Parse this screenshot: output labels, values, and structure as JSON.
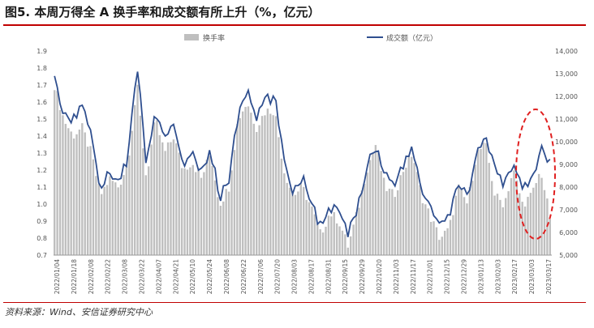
{
  "title": "图5. 本周万得全 A 换手率和成交额有所上升（%，亿元）",
  "source": "资料来源：Wind、安信证券研究中心",
  "chart_data": {
    "type": "bar",
    "legend_position": "top-center",
    "series": [
      {
        "name": "换手率",
        "type": "bar",
        "axis": "left",
        "color": "#bfbfbf"
      },
      {
        "name": "成交额（亿元）",
        "type": "line",
        "axis": "right",
        "color": "#2f4f8f"
      }
    ],
    "y_left": {
      "min": 0.7,
      "max": 1.9,
      "ticks": [
        "0.7",
        "0.8",
        "0.9",
        "1.0",
        "1.1",
        "1.2",
        "1.3",
        "1.4",
        "1.5",
        "1.6",
        "1.7",
        "1.8",
        "1.9"
      ]
    },
    "y_right": {
      "min": 5000,
      "max": 14000,
      "ticks": [
        "5,000",
        "6,000",
        "7,000",
        "8,000",
        "9,000",
        "10,000",
        "11,000",
        "12,000",
        "13,000",
        "14,000"
      ]
    },
    "x_tick_labels": [
      "2022/01/04",
      "2022/01/18",
      "2022/02/08",
      "2022/02/22",
      "2022/03/08",
      "2022/03/22",
      "2022/04/07",
      "2022/04/21",
      "2022/05/10",
      "2022/05/24",
      "2022/06/08",
      "2022/06/22",
      "2022/07/06",
      "2022/07/20",
      "2022/08/03",
      "2022/08/17",
      "2022/08/31",
      "2022/09/15",
      "2022/09/29",
      "2022/10/20",
      "2022/11/03",
      "2022/11/17",
      "2022/12/01",
      "2022/12/15",
      "2022/12/29",
      "2023/01/13",
      "2023/02/03",
      "2023/02/17",
      "2023/03/03",
      "2023/03/17"
    ],
    "turnover_anchors": [
      1.7,
      1.5,
      1.4,
      1.45,
      1.3,
      1.05,
      1.15,
      1.1,
      1.25,
      1.7,
      1.15,
      1.5,
      1.3,
      1.4,
      1.2,
      1.25,
      1.15,
      1.3,
      1.0,
      1.1,
      1.5,
      1.6,
      1.45,
      1.55,
      1.55,
      1.2,
      1.05,
      1.1,
      0.98,
      0.82,
      0.95,
      0.9,
      0.75,
      0.95,
      1.2,
      1.35,
      1.1,
      1.05,
      1.2,
      1.3,
      1.05,
      0.92,
      0.8,
      0.85,
      1.1,
      1.0,
      1.3,
      1.35,
      1.05,
      1.0,
      1.2,
      1.0,
      1.05,
      1.2,
      0.92
    ],
    "volume_anchors_yi": [
      12900,
      11200,
      10900,
      11700,
      10400,
      8000,
      8600,
      8400,
      9200,
      13500,
      9000,
      11300,
      10000,
      10800,
      9100,
      9400,
      8600,
      9700,
      7500,
      8400,
      11100,
      12300,
      11000,
      11900,
      11900,
      9400,
      7800,
      8500,
      7400,
      6200,
      7100,
      6900,
      5900,
      7100,
      8900,
      9800,
      8600,
      8200,
      8900,
      9700,
      7900,
      7100,
      6300,
      6600,
      8200,
      7600,
      9600,
      10100,
      8700,
      8100,
      9100,
      8000,
      8200,
      9700,
      9200
    ],
    "annotation": "red dashed ellipse highlighting the most recent weeks (2023/03)"
  }
}
